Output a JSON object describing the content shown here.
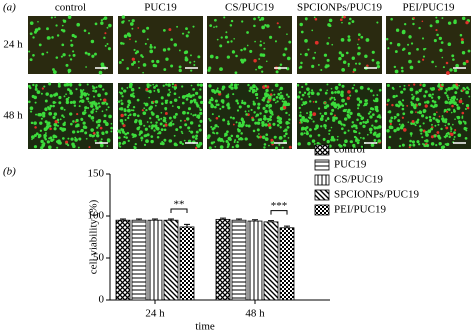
{
  "panel_a": {
    "label": "(a)",
    "columns": [
      "control",
      "PUC19",
      "CS/PUC19",
      "SPCIONPs/PUC19",
      "PEI/PUC19"
    ],
    "rows": [
      "24 h",
      "48 h"
    ]
  },
  "chart_data": {
    "type": "bar",
    "panel_label": "(b)",
    "xlabel": "time",
    "ylabel": "cell viability (%)",
    "categories": [
      "24 h",
      "48 h"
    ],
    "series": [
      {
        "name": "control",
        "color": "#000000",
        "pattern": "crosshatch",
        "values": [
          95,
          96
        ],
        "errors": [
          1.5,
          1.5
        ]
      },
      {
        "name": "PUC19",
        "color": "#000000",
        "pattern": "horizontal",
        "values": [
          95,
          95
        ],
        "errors": [
          1.5,
          1.5
        ]
      },
      {
        "name": "CS/PUC19",
        "color": "#000000",
        "pattern": "vertical",
        "values": [
          95,
          94
        ],
        "errors": [
          1.5,
          1.5
        ]
      },
      {
        "name": "SPCIONPs/PUC19",
        "color": "#000000",
        "pattern": "diagonal",
        "values": [
          95,
          93
        ],
        "errors": [
          1.5,
          1.5
        ]
      },
      {
        "name": "PEI/PUC19",
        "color": "#000000",
        "pattern": "checker",
        "values": [
          87,
          86
        ],
        "errors": [
          3,
          2
        ]
      }
    ],
    "annotations": [
      "**",
      "***"
    ],
    "ylim": [
      0,
      150
    ],
    "yticks": [
      0,
      50,
      100,
      150
    ],
    "legend": "right"
  }
}
